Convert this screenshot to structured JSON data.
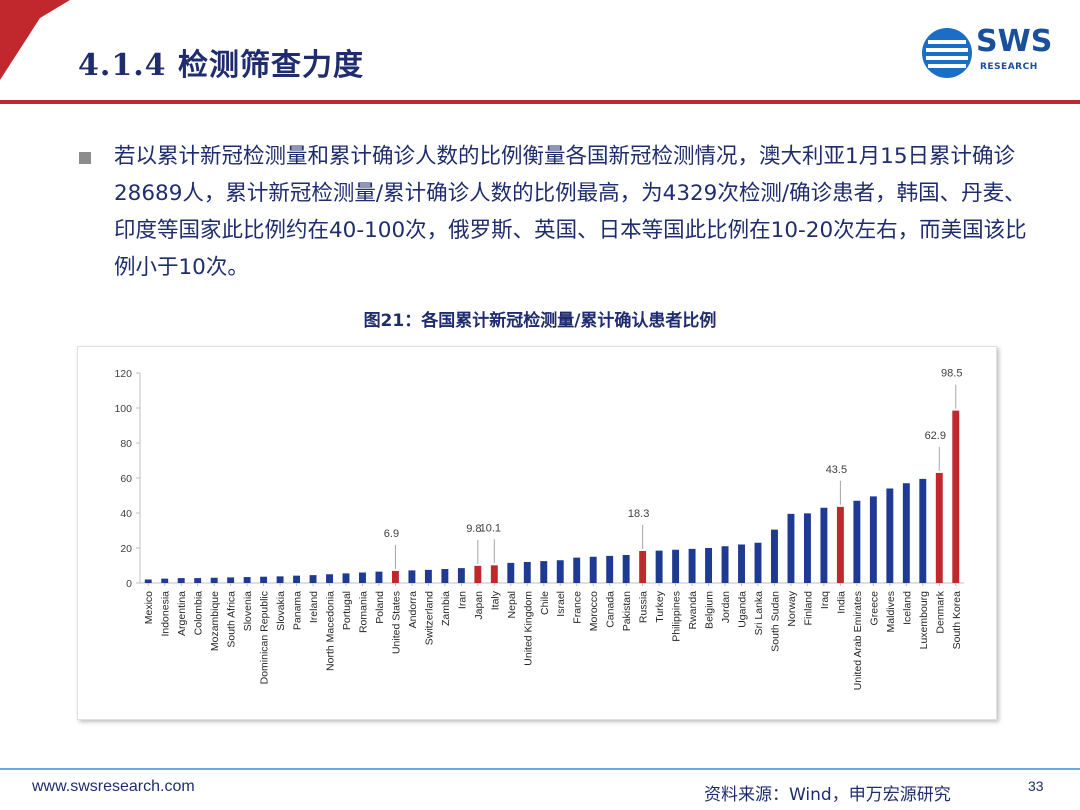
{
  "header": {
    "title": "4.1.4 检测筛查力度",
    "logo_text": "SWS",
    "logo_sub": "RESEARCH"
  },
  "body": {
    "paragraph": "若以累计新冠检测量和累计确诊人数的比例衡量各国新冠检测情况，澳大利亚1月15日累计确诊28689人，累计新冠检测量/累计确诊人数的比例最高，为4329次检测/确诊患者，韩国、丹麦、印度等国家此比例约在40-100次，俄罗斯、英国、日本等国此比例在10-20次左右，而美国该比例小于10次。"
  },
  "chart_data": {
    "type": "bar",
    "title": "图21：各国累计新冠检测量/累计确认患者比例",
    "xlabel": "",
    "ylabel": "",
    "ylim": [
      0,
      120
    ],
    "yticks": [
      0,
      20,
      40,
      60,
      80,
      100,
      120
    ],
    "grid": false,
    "colors": {
      "default": "#1f3a93",
      "highlight": "#c0282d"
    },
    "categories": [
      "Mexico",
      "Indonesia",
      "Argentina",
      "Colombia",
      "Mozambique",
      "South Africa",
      "Slovenia",
      "Dominican Republic",
      "Slovakia",
      "Panama",
      "Ireland",
      "North Macedonia",
      "Portugal",
      "Romania",
      "Poland",
      "United States",
      "Andorra",
      "Switzerland",
      "Zambia",
      "Iran",
      "Japan",
      "Italy",
      "Nepal",
      "United Kingdom",
      "Chile",
      "Israel",
      "France",
      "Morocco",
      "Canada",
      "Pakistan",
      "Russia",
      "Turkey",
      "Philippines",
      "Rwanda",
      "Belgium",
      "Jordan",
      "Uganda",
      "Sri Lanka",
      "South Sudan",
      "Norway",
      "Finland",
      "Iraq",
      "India",
      "United Arab Emirates",
      "Greece",
      "Maldives",
      "Iceland",
      "Luxembourg",
      "Denmark",
      "South Korea"
    ],
    "values": [
      2.0,
      2.5,
      2.8,
      2.8,
      3.0,
      3.2,
      3.4,
      3.6,
      3.8,
      4.2,
      4.5,
      5.0,
      5.5,
      6.0,
      6.5,
      6.9,
      7.2,
      7.5,
      8.0,
      8.5,
      9.8,
      10.1,
      11.5,
      12.0,
      12.5,
      13.0,
      14.5,
      15.0,
      15.5,
      16.0,
      18.3,
      18.5,
      19.0,
      19.5,
      20.0,
      21.0,
      22.0,
      23.0,
      30.5,
      39.5,
      39.8,
      43.0,
      43.5,
      47.0,
      49.5,
      54.0,
      57.0,
      59.5,
      62.9,
      98.5
    ],
    "highlighted": [
      "United States",
      "Japan",
      "Italy",
      "Russia",
      "India",
      "Denmark",
      "South Korea"
    ],
    "data_labels": [
      {
        "category": "United States",
        "label": "6.9"
      },
      {
        "category": "Japan",
        "label": "9.8"
      },
      {
        "category": "Italy",
        "label": "10.1"
      },
      {
        "category": "Russia",
        "label": "18.3"
      },
      {
        "category": "India",
        "label": "43.5"
      },
      {
        "category": "Denmark",
        "label": "62.9"
      },
      {
        "category": "South Korea",
        "label": "98.5"
      }
    ]
  },
  "footer": {
    "url": "www.swsresearch.com",
    "source": "资料来源：Wind，申万宏源研究",
    "page": "33"
  }
}
